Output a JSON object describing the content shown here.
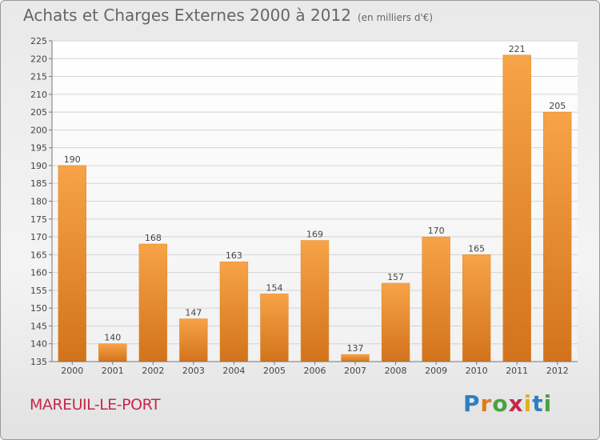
{
  "header": {
    "title": "Achats et Charges Externes 2000 à 2012",
    "subtitle": "(en milliers d'€)"
  },
  "footer": {
    "commune": "MAREUIL-LE-PORT",
    "logo_letters": [
      "P",
      "r",
      "o",
      "x",
      "i",
      "t",
      "i"
    ],
    "logo_colors": [
      "#2f7fbf",
      "#e07b1a",
      "#48a23f",
      "#c6284a",
      "#e0b21a",
      "#2f7fbf",
      "#48a23f"
    ]
  },
  "chart_data": {
    "type": "bar",
    "categories": [
      "2000",
      "2001",
      "2002",
      "2003",
      "2004",
      "2005",
      "2006",
      "2007",
      "2008",
      "2009",
      "2010",
      "2011",
      "2012"
    ],
    "values": [
      190,
      140,
      168,
      147,
      163,
      154,
      169,
      137,
      157,
      170,
      165,
      221,
      205
    ],
    "ylim": [
      135,
      225
    ],
    "yticks": [
      135,
      140,
      145,
      150,
      155,
      160,
      165,
      170,
      175,
      180,
      185,
      190,
      195,
      200,
      205,
      210,
      215,
      220,
      225
    ],
    "grid": true,
    "bar_color": "#f0962e"
  }
}
